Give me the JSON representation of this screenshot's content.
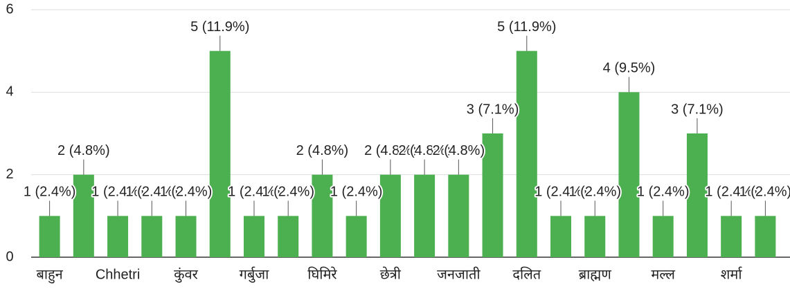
{
  "chart_data": {
    "type": "bar",
    "categories": [
      "बाहुन",
      null,
      "Chhetri",
      null,
      "कुंवर",
      null,
      "गर्बुजा",
      null,
      "घिमिरे",
      null,
      "छेत्री",
      null,
      "जनजाती",
      null,
      "दलित",
      null,
      "ब्राह्मण",
      null,
      "मल्ल",
      null,
      "शर्मा",
      null
    ],
    "values": [
      1,
      2,
      1,
      1,
      1,
      5,
      1,
      1,
      2,
      1,
      2,
      2,
      2,
      3,
      5,
      1,
      1,
      4,
      1,
      3,
      1,
      1
    ],
    "value_labels": [
      "1 (2.4%)",
      "2 (4.8%)",
      "1 (2.4%)",
      "1 (2.4%)",
      "1 (2.4%)",
      "5 (11.9%)",
      "1 (2.4%)",
      "1 (2.4%)",
      "2 (4.8%)",
      "1 (2.4%)",
      "2 (4.8%)",
      "2 (4.8%)",
      "2 (4.8%)",
      "3 (7.1%)",
      "5 (11.9%)",
      "1 (2.4%)",
      "1 (2.4%)",
      "4 (9.5%)",
      "1 (2.4%)",
      "3 (7.1%)",
      "1 (2.4%)",
      "1 (2.4%)"
    ],
    "color": "#4caf50",
    "ylim": [
      0,
      6
    ],
    "yticks": [
      0,
      2,
      4,
      6
    ],
    "grid": true
  }
}
